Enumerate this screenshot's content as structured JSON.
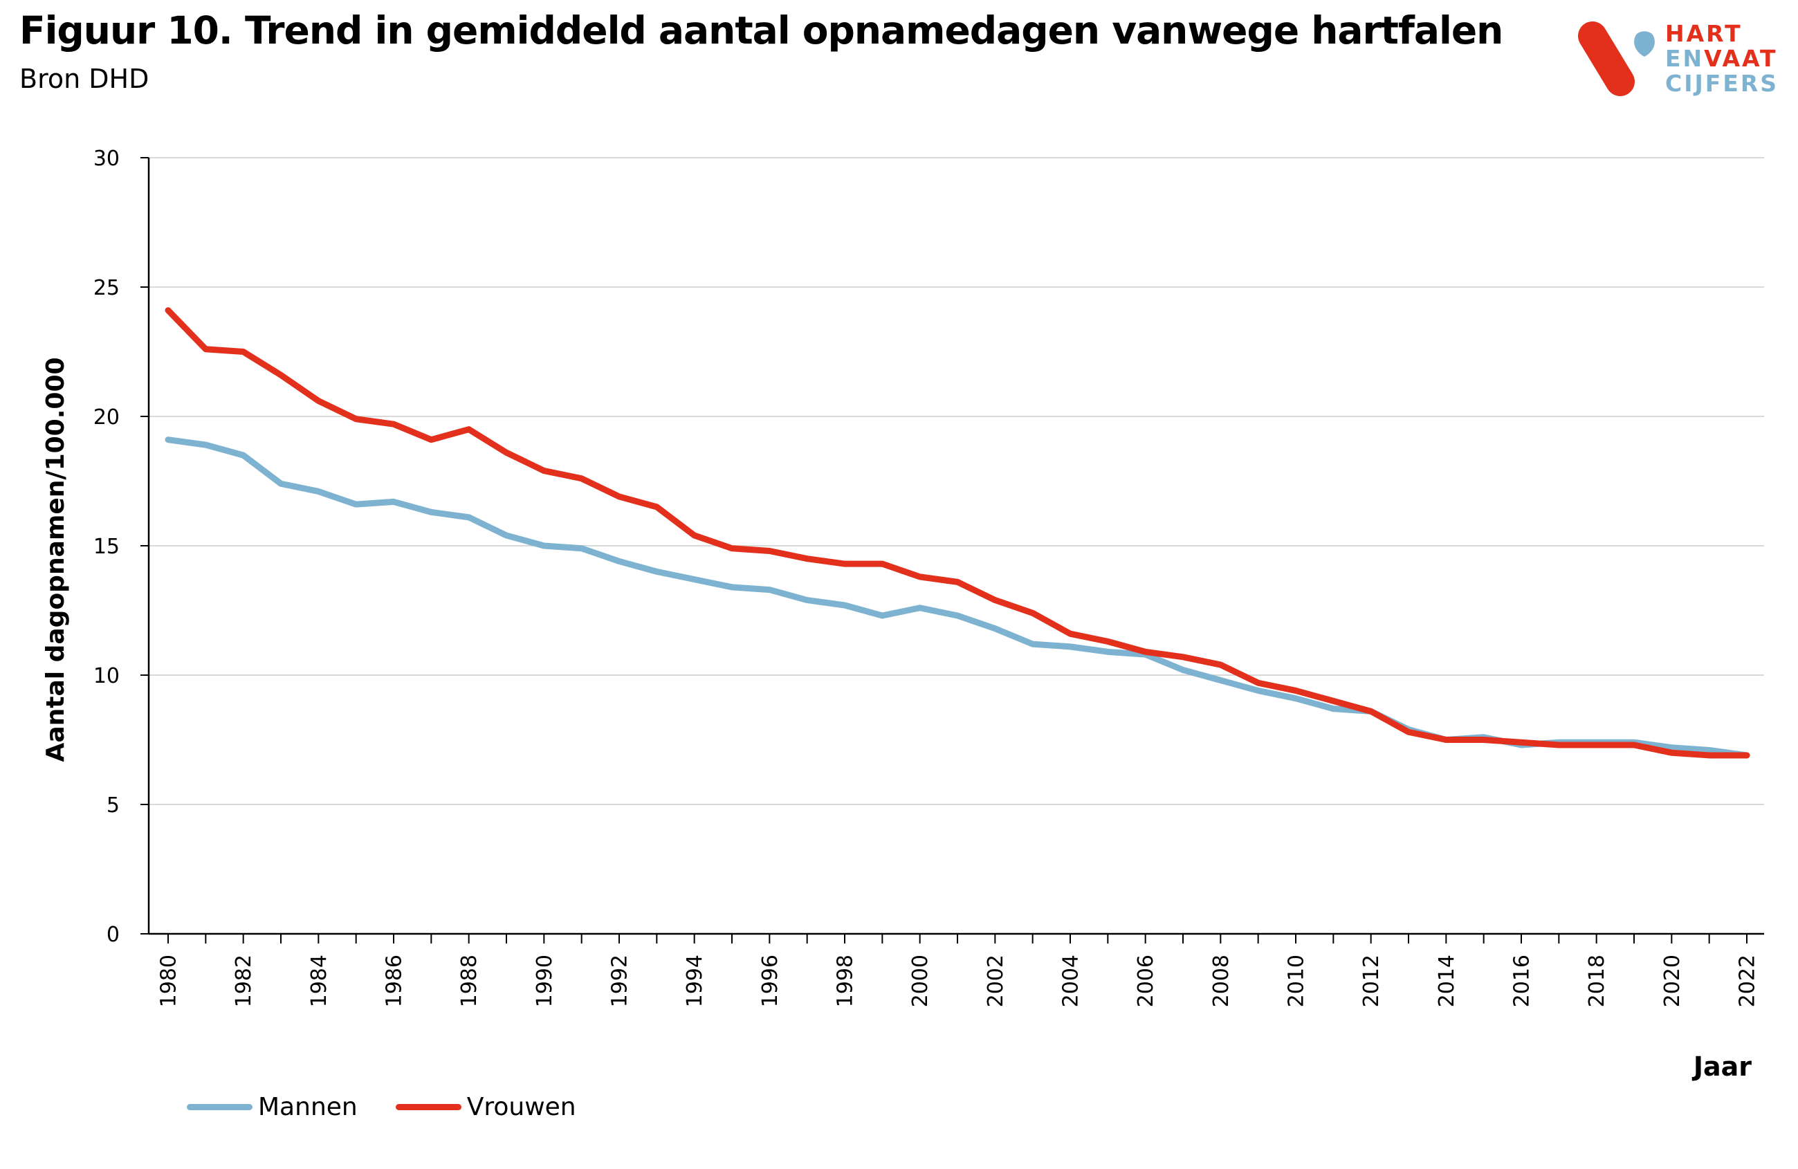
{
  "header": {
    "title": "Figuur 10. Trend in gemiddeld aantal opnamedagen vanwege hartfalen",
    "subtitle": "Bron DHD"
  },
  "logo": {
    "line1": "HART",
    "line2a": "EN",
    "line2b": "VAAT",
    "line3": "CIJFERS",
    "colors": {
      "red": "#e3301c",
      "blue": "#7db3d0"
    }
  },
  "chart_data": {
    "type": "line",
    "title": "Figuur 10. Trend in gemiddeld aantal opnamedagen vanwege hartfalen",
    "subtitle": "Bron DHD",
    "xlabel": "Jaar",
    "ylabel": "Aantal dagopnamen/100.000",
    "ylim": [
      0,
      30
    ],
    "yticks": [
      "0",
      "5",
      "10",
      "15",
      "20",
      "25",
      "30"
    ],
    "xtick_labels": [
      "1980",
      "1982",
      "1984",
      "1986",
      "1988",
      "1990",
      "1992",
      "1994",
      "1996",
      "1998",
      "2000",
      "2002",
      "2004",
      "2006",
      "2008",
      "2010",
      "2012",
      "2014",
      "2016",
      "2018",
      "2020",
      "2022"
    ],
    "grid": "horizontal",
    "legend_position": "bottom-left",
    "x": [
      1980,
      1981,
      1982,
      1983,
      1984,
      1985,
      1986,
      1987,
      1988,
      1989,
      1990,
      1991,
      1992,
      1993,
      1994,
      1995,
      1996,
      1997,
      1998,
      1999,
      2000,
      2001,
      2002,
      2003,
      2004,
      2005,
      2006,
      2007,
      2008,
      2009,
      2010,
      2011,
      2012,
      2013,
      2014,
      2015,
      2016,
      2017,
      2018,
      2019,
      2020,
      2021,
      2022
    ],
    "series": [
      {
        "name": "Mannen",
        "color": "#7db3d0",
        "values": [
          19.1,
          18.9,
          18.5,
          17.4,
          17.1,
          16.6,
          16.7,
          16.3,
          16.1,
          15.4,
          15.0,
          14.9,
          14.4,
          14.0,
          13.7,
          13.4,
          13.3,
          12.9,
          12.7,
          12.3,
          12.6,
          12.3,
          11.8,
          11.2,
          11.1,
          10.9,
          10.8,
          10.2,
          9.8,
          9.4,
          9.1,
          8.7,
          8.6,
          7.9,
          7.5,
          7.6,
          7.3,
          7.4,
          7.4,
          7.4,
          7.2,
          7.1,
          6.9
        ]
      },
      {
        "name": "Vrouwen",
        "color": "#e3301c",
        "values": [
          24.1,
          22.6,
          22.5,
          21.6,
          20.6,
          19.9,
          19.7,
          19.1,
          19.5,
          18.6,
          17.9,
          17.6,
          16.9,
          16.5,
          15.4,
          14.9,
          14.8,
          14.5,
          14.3,
          14.3,
          13.8,
          13.6,
          12.9,
          12.4,
          11.6,
          11.3,
          10.9,
          10.7,
          10.4,
          9.7,
          9.4,
          9.0,
          8.6,
          7.8,
          7.5,
          7.5,
          7.4,
          7.3,
          7.3,
          7.3,
          7.0,
          6.9,
          6.9
        ]
      }
    ]
  }
}
